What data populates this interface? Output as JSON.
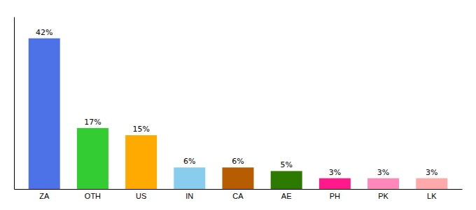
{
  "chart_data": {
    "type": "bar",
    "categories": [
      "ZA",
      "OTH",
      "US",
      "IN",
      "CA",
      "AE",
      "PH",
      "PK",
      "LK"
    ],
    "values": [
      42,
      17,
      15,
      6,
      6,
      5,
      3,
      3,
      3
    ],
    "value_labels": [
      "42%",
      "17%",
      "15%",
      "6%",
      "6%",
      "5%",
      "3%",
      "3%",
      "3%"
    ],
    "colors": [
      "#4d72e8",
      "#33cc33",
      "#ffaa00",
      "#88ccee",
      "#b85c00",
      "#2d7a00",
      "#ff1a8c",
      "#ff88bb",
      "#ffaaaa"
    ],
    "ylim": [
      0,
      48
    ],
    "data_labels": true,
    "tick_labels": "x"
  }
}
